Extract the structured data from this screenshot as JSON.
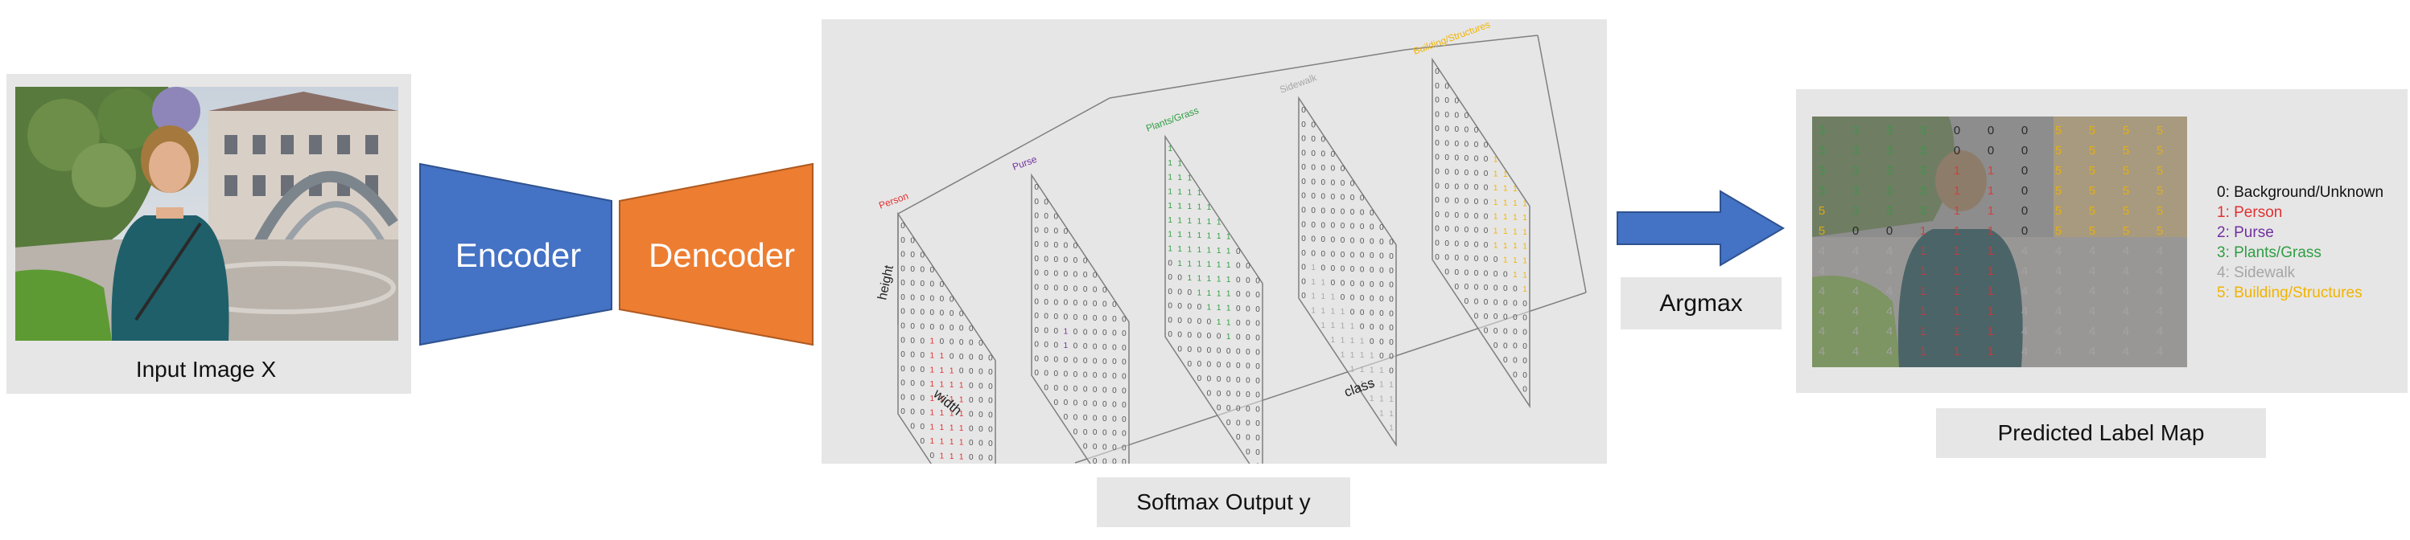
{
  "input": {
    "caption": "Input Image X"
  },
  "encoder": {
    "label": "Encoder",
    "color": "#4472c4"
  },
  "decoder": {
    "label": "Dencoder",
    "color": "#ed7d31"
  },
  "softmax": {
    "caption": "Softmax Output y",
    "axis_height": "height",
    "axis_width": "width",
    "axis_class": "class",
    "slices": [
      {
        "name": "Person",
        "color": "#e03131"
      },
      {
        "name": "Purse",
        "color": "#7030a0"
      },
      {
        "name": "Plants/Grass",
        "color": "#2f9e44"
      },
      {
        "name": "Sidewalk",
        "color": "#a6a6a6"
      },
      {
        "name": "Building/Structures",
        "color": "#f0b400"
      }
    ],
    "cell_digit": "0",
    "hot_digit": "1"
  },
  "argmax": {
    "label": "Argmax",
    "arrow_color": "#4472c4"
  },
  "output": {
    "caption": "Predicted Label Map",
    "legend": [
      {
        "text": "0: Background/Unknown",
        "color": "#111111"
      },
      {
        "text": "1: Person",
        "color": "#e03131"
      },
      {
        "text": "2: Purse",
        "color": "#7030a0"
      },
      {
        "text": "3: Plants/Grass",
        "color": "#2f9e44"
      },
      {
        "text": "4: Sidewalk",
        "color": "#a6a6a6"
      },
      {
        "text": "5: Building/Structures",
        "color": "#f0b400"
      }
    ]
  }
}
